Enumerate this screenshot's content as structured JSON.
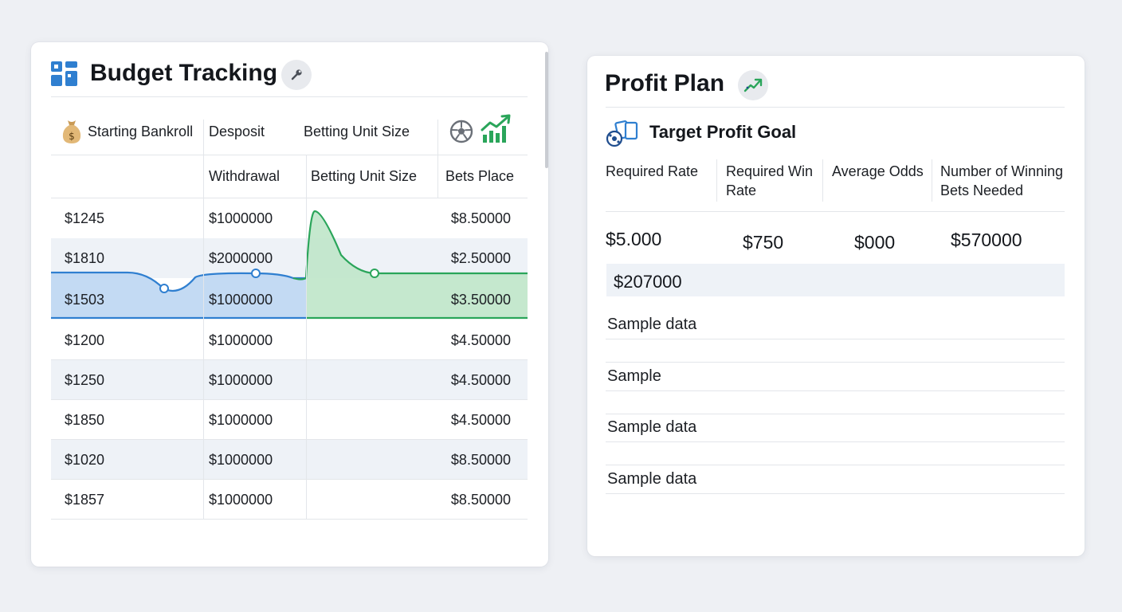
{
  "budget": {
    "title": "Budget Tracking",
    "header_row1": [
      "Starting Bankroll",
      "Desposit",
      "Betting Unit Size"
    ],
    "header_row2": [
      "Withdrawal",
      "Betting Unit Size",
      "Bets Place"
    ],
    "rows": [
      {
        "bankroll": "$1245",
        "deposit": "$1000000",
        "bets": "$8.50000"
      },
      {
        "bankroll": "$1810",
        "deposit": "$2000000",
        "bets": "$2.50000"
      },
      {
        "bankroll": "$1503",
        "deposit": "$1000000",
        "bets": "$3.50000"
      },
      {
        "bankroll": "$1200",
        "deposit": "$1000000",
        "bets": "$4.50000"
      },
      {
        "bankroll": "$1250",
        "deposit": "$1000000",
        "bets": "$4.50000"
      },
      {
        "bankroll": "$1850",
        "deposit": "$1000000",
        "bets": "$4.50000"
      },
      {
        "bankroll": "$1020",
        "deposit": "$1000000",
        "bets": "$8.50000"
      },
      {
        "bankroll": "$1857",
        "deposit": "$1000000",
        "bets": "$8.50000"
      }
    ],
    "colors": {
      "blue_area": "#bcd6f2",
      "blue_line": "#2f7fd0",
      "green_area": "#bfe6c9",
      "green_line": "#2aa55a"
    }
  },
  "profit": {
    "title": "Profit Plan",
    "section_title": "Target Profit Goal",
    "headers": [
      "Required Rate",
      "Required Win Rate",
      "Average Odds",
      "Number of Winning Bets Needed"
    ],
    "values": [
      "$5.000",
      "$750",
      "$000",
      "$570000"
    ],
    "highlight_value": "$207000",
    "samples": [
      "Sample data",
      "Sample",
      "Sample data",
      "Sample data"
    ]
  }
}
